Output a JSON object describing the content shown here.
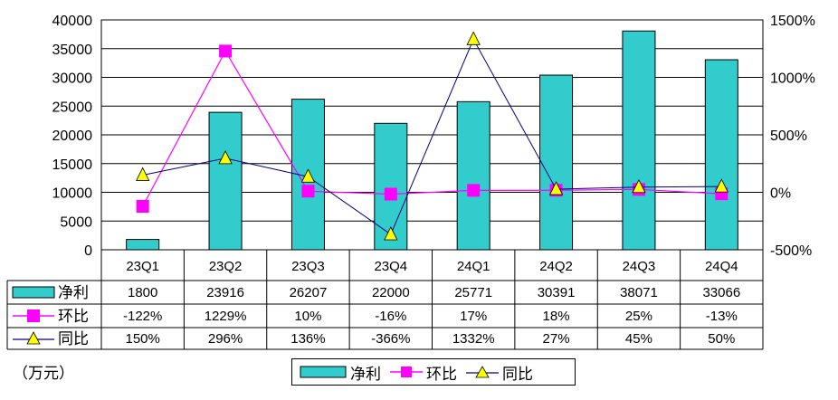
{
  "chart_data": {
    "type": "bar",
    "categories": [
      "23Q1",
      "23Q2",
      "23Q3",
      "23Q4",
      "24Q1",
      "24Q2",
      "24Q3",
      "24Q4"
    ],
    "series": [
      {
        "name": "净利",
        "type": "bar",
        "axis": "left",
        "color": "#33CCCC",
        "values": [
          1800,
          23916,
          26207,
          22000,
          25771,
          30391,
          38071,
          33066
        ],
        "labels": [
          "1800",
          "23916",
          "26207",
          "22000",
          "25771",
          "30391",
          "38071",
          "33066"
        ]
      },
      {
        "name": "环比",
        "type": "line",
        "axis": "right",
        "color": "#FF00FF",
        "marker": "square",
        "values": [
          -122,
          1229,
          10,
          -16,
          17,
          18,
          25,
          -13
        ],
        "labels": [
          "-122%",
          "1229%",
          "10%",
          "-16%",
          "17%",
          "18%",
          "25%",
          "-13%"
        ]
      },
      {
        "name": "同比",
        "type": "line",
        "axis": "right",
        "color": "#000080",
        "marker": "triangle",
        "marker_color": "#FFFF00",
        "values": [
          150,
          296,
          136,
          -366,
          1332,
          27,
          45,
          50
        ],
        "labels": [
          "150%",
          "296%",
          "136%",
          "-366%",
          "1332%",
          "27%",
          "45%",
          "50%"
        ]
      }
    ],
    "ylim_left": [
      0,
      40000
    ],
    "yticks_left": [
      "40000",
      "35000",
      "30000",
      "25000",
      "20000",
      "15000",
      "10000",
      "5000",
      "0"
    ],
    "ylim_right": [
      -500,
      1500
    ],
    "yticks_right": [
      "1500%",
      "1000%",
      "500%",
      "0%",
      "-500%"
    ],
    "unit_label": "（万元）",
    "grid": true,
    "legend_position": "bottom-center",
    "data_table": true
  }
}
